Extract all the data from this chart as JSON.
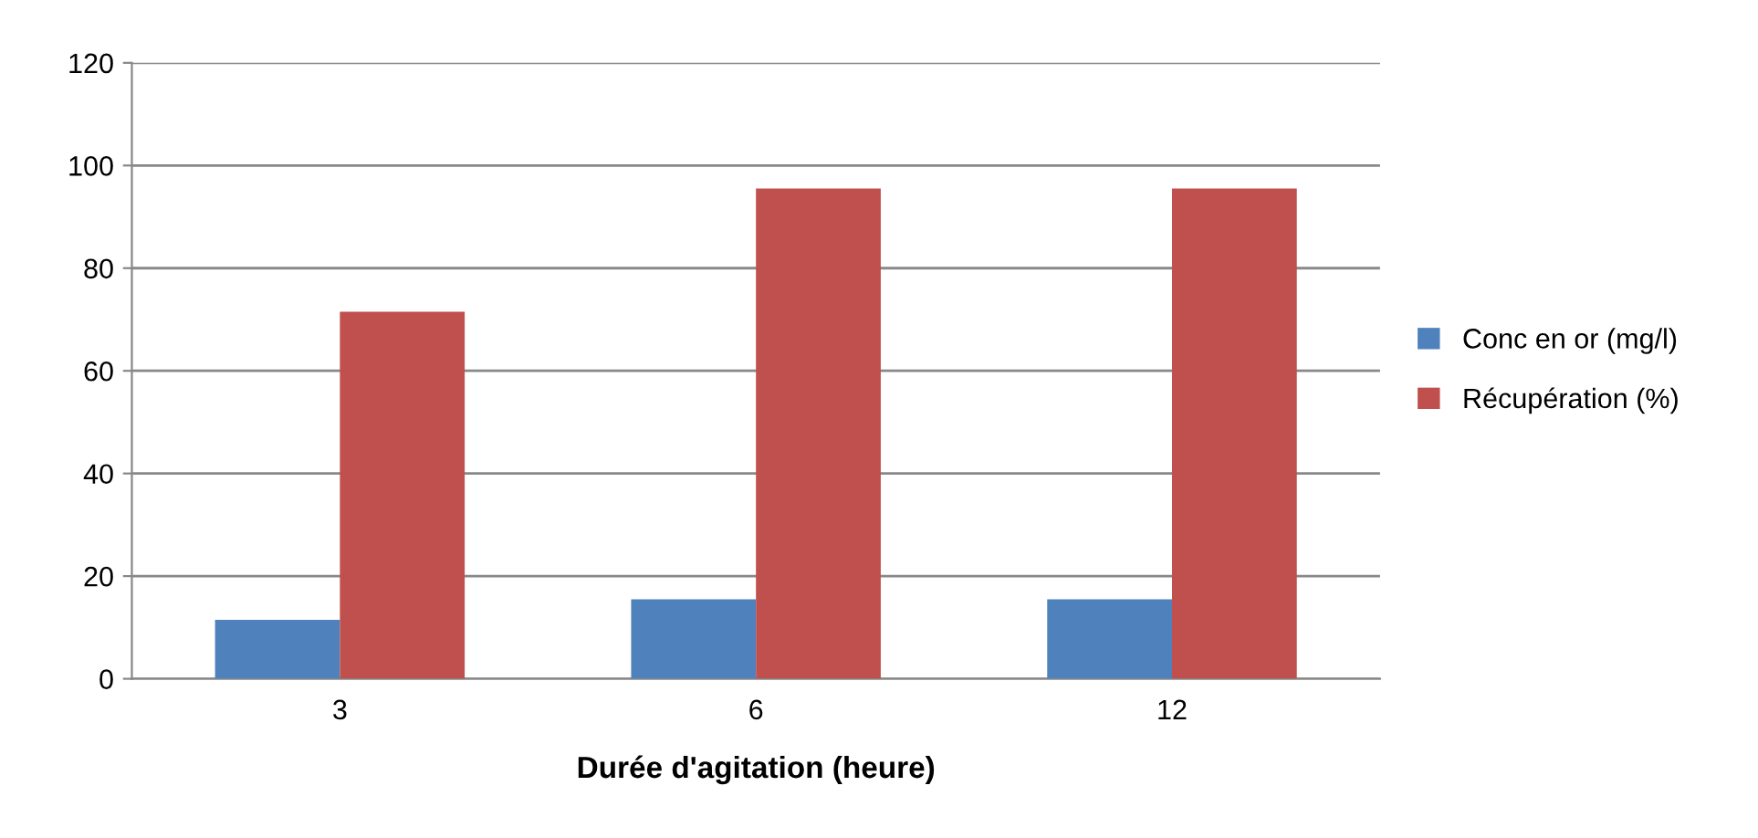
{
  "chart_data": {
    "type": "bar",
    "xlabel": "Durée d'agitation (heure)",
    "categories": [
      "3",
      "6",
      "12"
    ],
    "series": [
      {
        "name": "Conc en or (mg/l)",
        "color": "#4f81bd",
        "values": [
          11.5,
          15.5,
          15.5
        ]
      },
      {
        "name": "Récupération (%)",
        "color": "#c0504d",
        "values": [
          71.5,
          95.5,
          95.5
        ]
      }
    ],
    "ylim": [
      0,
      120
    ],
    "yticks": [
      0,
      20,
      40,
      60,
      80,
      100,
      120
    ],
    "grid": "y",
    "legend": "right"
  }
}
